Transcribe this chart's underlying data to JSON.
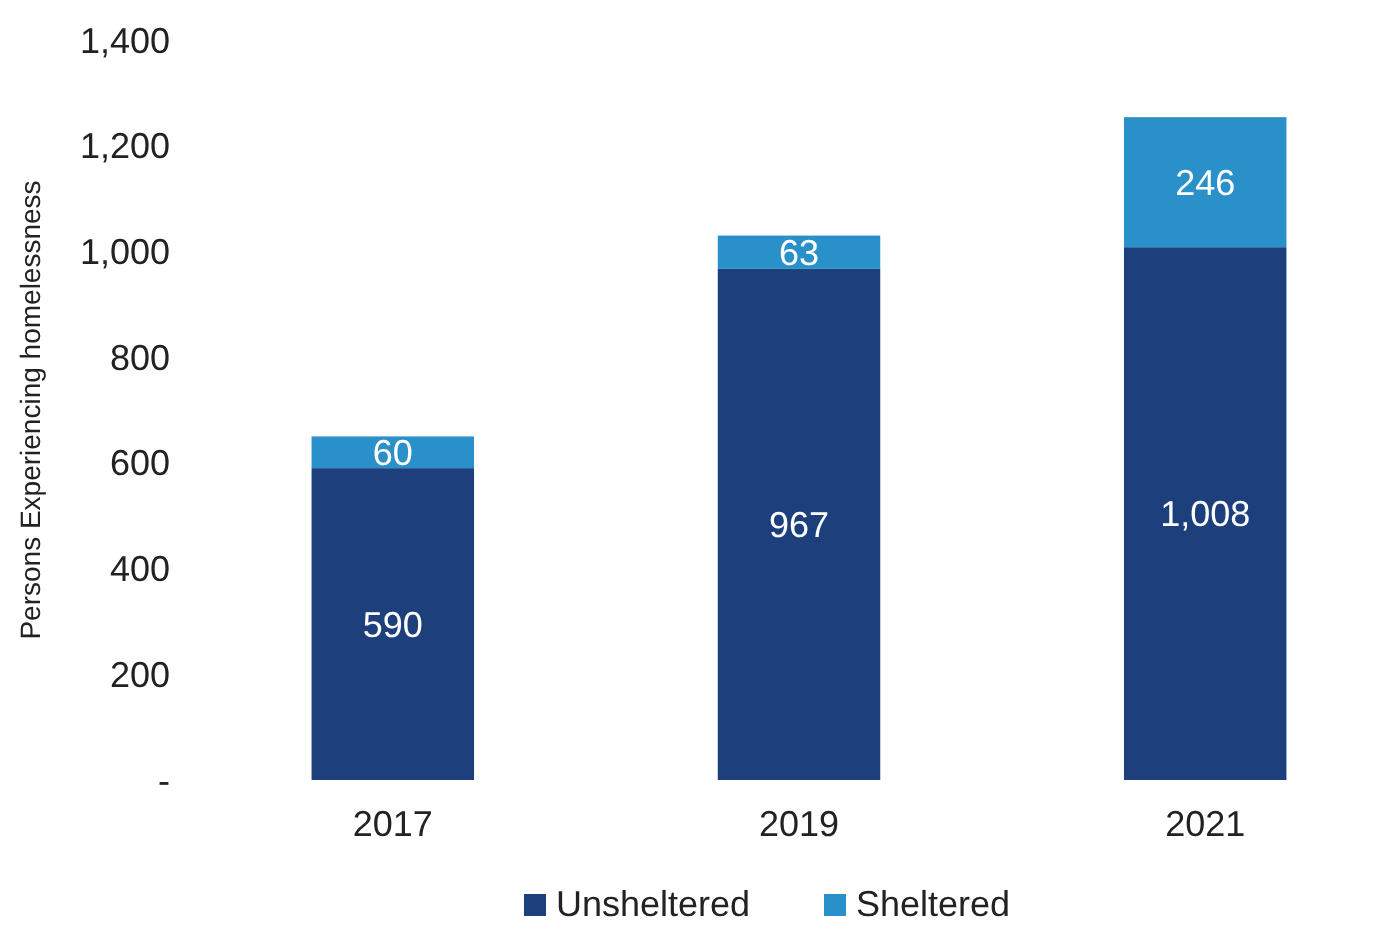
{
  "chart_data": {
    "type": "bar",
    "stacked": true,
    "ylabel": "Persons Experiencing homelessness",
    "categories": [
      "2017",
      "2019",
      "2021"
    ],
    "series": [
      {
        "name": "Unsheltered",
        "color": "#1d3f7c",
        "values": [
          590,
          967,
          1008
        ],
        "value_labels": [
          "590",
          "967",
          "1,008"
        ]
      },
      {
        "name": "Sheltered",
        "color": "#2a90c9",
        "values": [
          60,
          63,
          246
        ],
        "value_labels": [
          "60",
          "63",
          "246"
        ]
      }
    ],
    "ylim": [
      0,
      1400
    ],
    "yticks": [
      {
        "value": 0,
        "label": "-"
      },
      {
        "value": 200,
        "label": "200"
      },
      {
        "value": 400,
        "label": "400"
      },
      {
        "value": 600,
        "label": "600"
      },
      {
        "value": 800,
        "label": "800"
      },
      {
        "value": 1000,
        "label": "1,000"
      },
      {
        "value": 1200,
        "label": "1,200"
      },
      {
        "value": 1400,
        "label": "1,400"
      }
    ],
    "legend": "bottom",
    "grid": false
  }
}
